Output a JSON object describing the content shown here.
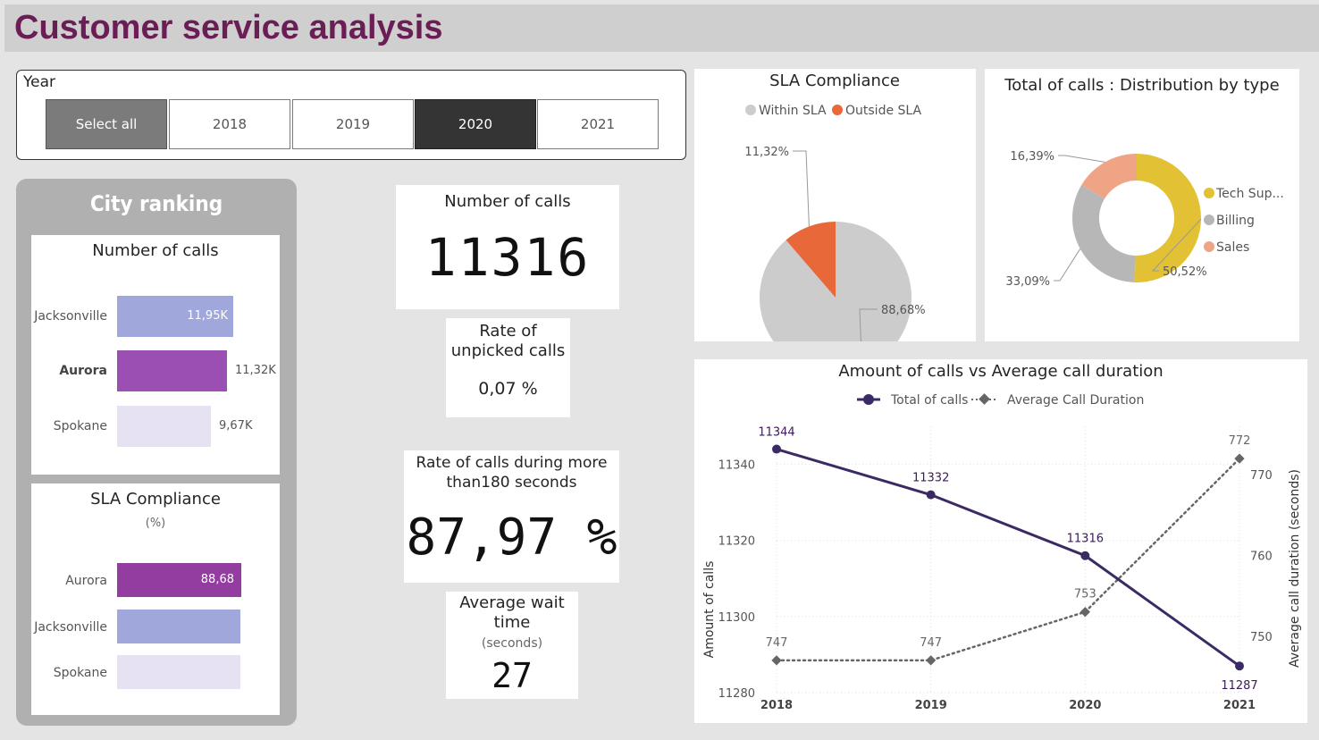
{
  "page": {
    "title": "Customer service analysis"
  },
  "year_slicer": {
    "label": "Year",
    "options": [
      "Select all",
      "2018",
      "2019",
      "2020",
      "2021"
    ],
    "selected": "2020"
  },
  "city_ranking": {
    "title": "City ranking",
    "calls_card": {
      "title": "Number of calls",
      "rows": [
        {
          "city": "Jacksonville",
          "value": 11.95,
          "label": "11,95K",
          "color": "#a0a7db"
        },
        {
          "city": "Aurora",
          "value": 11.32,
          "label": "11,32K",
          "color": "#9c4fb2"
        },
        {
          "city": "Spokane",
          "value": 9.67,
          "label": "9,67K",
          "color": "#e7e1f4"
        }
      ]
    },
    "sla_card": {
      "title": "SLA Compliance",
      "subtitle": "(%)",
      "rows": [
        {
          "city": "Aurora",
          "value": 88.68,
          "label": "88,68",
          "color": "#933da0"
        },
        {
          "city": "Jacksonville",
          "value": 88.68,
          "label": "",
          "color": "#a0a7db"
        },
        {
          "city": "Spokane",
          "value": 88.68,
          "label": "",
          "color": "#e7e1f4"
        }
      ]
    }
  },
  "kpis": {
    "number_of_calls": {
      "title": "Number of calls",
      "value": "11316"
    },
    "unpicked_rate": {
      "title_line1": "Rate of",
      "title_line2": "unpicked calls",
      "value": "0,07 %"
    },
    "long_calls_rate": {
      "title_line1": "Rate of calls during more",
      "title_line2": "than180 seconds",
      "value": "87,97 %"
    },
    "avg_wait": {
      "title_line1": "Average wait",
      "title_line2": "time",
      "subtitle": "(seconds)",
      "value": "27"
    }
  },
  "chart_data": [
    {
      "type": "pie",
      "title": "SLA Compliance",
      "legend": [
        "Within SLA",
        "Outside SLA"
      ],
      "slices": [
        {
          "name": "Within SLA",
          "value": 88.68,
          "label": "88,68%",
          "color": "#cccccc"
        },
        {
          "name": "Outside SLA",
          "value": 11.32,
          "label": "11,32%",
          "color": "#e8683a"
        }
      ]
    },
    {
      "type": "pie",
      "title": "Total of calls : Distribution by type",
      "donut": true,
      "legend": [
        "Tech Sup...",
        "Billing",
        "Sales"
      ],
      "slices": [
        {
          "name": "Tech Sup...",
          "value": 50.52,
          "label": "50,52%",
          "color": "#e2c234"
        },
        {
          "name": "Billing",
          "value": 33.09,
          "label": "33,09%",
          "color": "#b7b7b7"
        },
        {
          "name": "Sales",
          "value": 16.39,
          "label": "16,39%",
          "color": "#efa486"
        }
      ]
    },
    {
      "type": "line",
      "title": "Amount of calls vs Average call duration",
      "categories": [
        "2018",
        "2019",
        "2020",
        "2021"
      ],
      "series": [
        {
          "name": "Total of calls",
          "values": [
            11344,
            11332,
            11316,
            11287
          ],
          "color": "#3b2a63",
          "axis": "left"
        },
        {
          "name": "Average Call Duration",
          "values": [
            747,
            747,
            753,
            772
          ],
          "color": "#666666",
          "axis": "right"
        }
      ],
      "ylabel": "Amount of calls",
      "y2label": "Average call duration (seconds)",
      "ylim": [
        11280,
        11350
      ],
      "y2lim": [
        743,
        776
      ],
      "yticks": [
        "11280",
        "11300",
        "11320",
        "11340"
      ],
      "y2ticks": [
        "750",
        "760",
        "770"
      ]
    }
  ]
}
